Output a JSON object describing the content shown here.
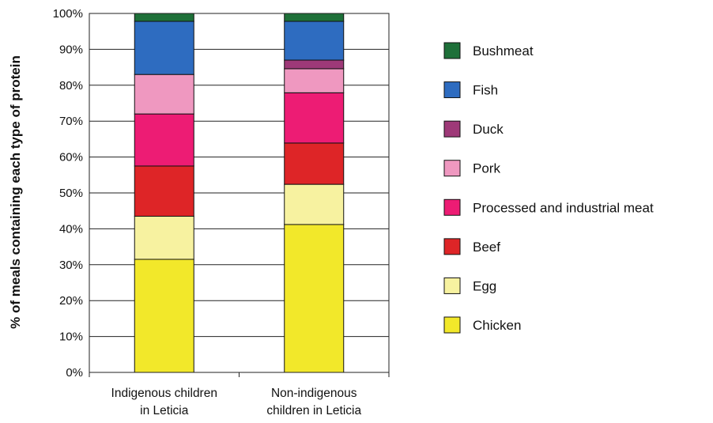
{
  "chart_data": {
    "type": "bar",
    "stacked": true,
    "ylabel": "% of meals containing each type of protein",
    "xlabel": "",
    "ylim": [
      0,
      100
    ],
    "yticks": [
      "0%",
      "10%",
      "20%",
      "30%",
      "40%",
      "50%",
      "60%",
      "70%",
      "80%",
      "90%",
      "100%"
    ],
    "grid": true,
    "legend_position": "right",
    "categories": [
      [
        "Indigenous children",
        "in Leticia"
      ],
      [
        "Non-indigenous",
        "children in Leticia"
      ]
    ],
    "series": [
      {
        "name": "Chicken",
        "color": "#f2e82a",
        "values": [
          31.5,
          41.2
        ]
      },
      {
        "name": "Egg",
        "color": "#f7f2a0",
        "values": [
          12.0,
          11.2
        ]
      },
      {
        "name": "Beef",
        "color": "#de2527",
        "values": [
          14.0,
          11.5
        ]
      },
      {
        "name": "Processed and industrial meat",
        "color": "#ed1c74",
        "values": [
          14.5,
          14.0
        ]
      },
      {
        "name": "Pork",
        "color": "#ef98c0",
        "values": [
          11.0,
          6.7
        ]
      },
      {
        "name": "Duck",
        "color": "#9e3978",
        "values": [
          0.0,
          2.4
        ]
      },
      {
        "name": "Fish",
        "color": "#2e6cc0",
        "values": [
          14.8,
          10.8
        ]
      },
      {
        "name": "Bushmeat",
        "color": "#1e7039",
        "values": [
          2.2,
          2.2
        ]
      }
    ]
  }
}
